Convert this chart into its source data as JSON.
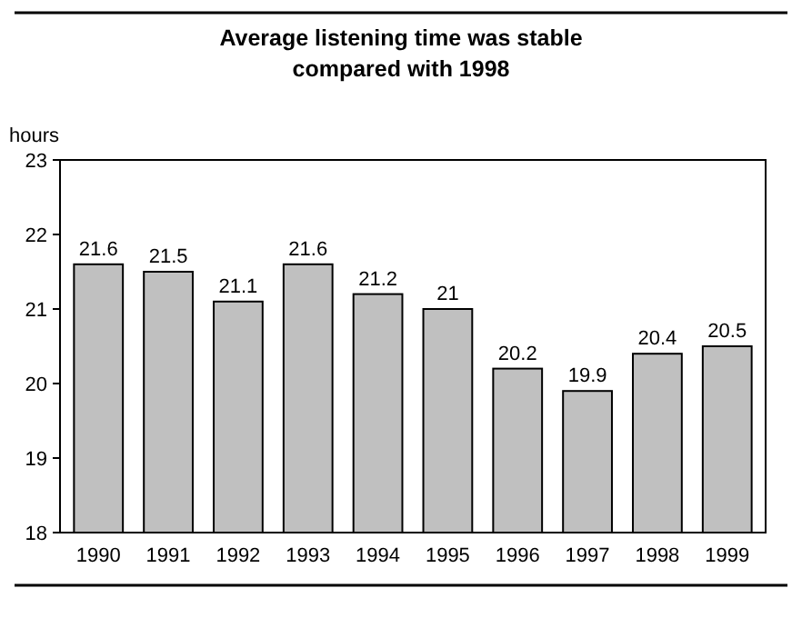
{
  "chart_data": {
    "type": "bar",
    "title": "Average listening time was stable\ncompared with 1998",
    "ylabel": "hours",
    "categories": [
      "1990",
      "1991",
      "1992",
      "1993",
      "1994",
      "1995",
      "1996",
      "1997",
      "1998",
      "1999"
    ],
    "values": [
      21.6,
      21.5,
      21.1,
      21.6,
      21.2,
      21,
      20.2,
      19.9,
      20.4,
      20.5
    ],
    "color": "#c0c0c0",
    "ylim": [
      18,
      23
    ],
    "yticks": [
      18,
      19,
      20,
      21,
      22,
      23
    ],
    "grid": false,
    "data_labels": true
  }
}
